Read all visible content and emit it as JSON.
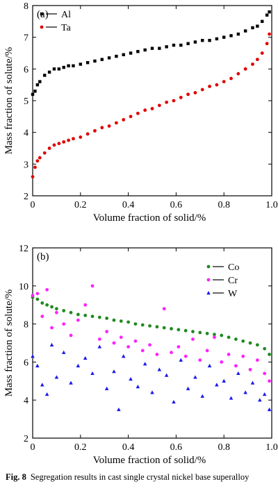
{
  "chart_data": [
    {
      "type": "scatter",
      "panel_label": "(a)",
      "xlabel": "Volume fraction of solid/%",
      "ylabel": "Mass fraction of solute/%",
      "xlim": [
        0,
        1.0
      ],
      "ylim": [
        2,
        8
      ],
      "xticks": [
        "0",
        "0.2",
        "0.4",
        "0.6",
        "0.8",
        "1.0"
      ],
      "yticks": [
        "2",
        "3",
        "4",
        "5",
        "6",
        "7",
        "8"
      ],
      "legend_position": "top-left",
      "series": [
        {
          "name": "Al",
          "color": "#000000",
          "marker": "square",
          "x": [
            0.0,
            0.01,
            0.02,
            0.03,
            0.05,
            0.07,
            0.09,
            0.11,
            0.13,
            0.15,
            0.17,
            0.2,
            0.23,
            0.26,
            0.29,
            0.32,
            0.35,
            0.38,
            0.41,
            0.44,
            0.47,
            0.5,
            0.53,
            0.56,
            0.59,
            0.62,
            0.65,
            0.68,
            0.71,
            0.74,
            0.77,
            0.8,
            0.83,
            0.86,
            0.89,
            0.92,
            0.94,
            0.96,
            0.98,
            0.99
          ],
          "y": [
            5.2,
            5.3,
            5.5,
            5.6,
            5.8,
            5.9,
            6.0,
            6.0,
            6.05,
            6.1,
            6.1,
            6.15,
            6.2,
            6.25,
            6.3,
            6.35,
            6.4,
            6.45,
            6.5,
            6.55,
            6.6,
            6.65,
            6.65,
            6.7,
            6.75,
            6.75,
            6.8,
            6.85,
            6.9,
            6.9,
            6.95,
            7.0,
            7.05,
            7.1,
            7.2,
            7.3,
            7.35,
            7.5,
            7.7,
            7.8
          ]
        },
        {
          "name": "Ta",
          "color": "#e00000",
          "marker": "circle",
          "x": [
            0.0,
            0.01,
            0.02,
            0.03,
            0.05,
            0.07,
            0.09,
            0.11,
            0.13,
            0.15,
            0.17,
            0.2,
            0.23,
            0.26,
            0.29,
            0.32,
            0.35,
            0.38,
            0.41,
            0.44,
            0.47,
            0.5,
            0.53,
            0.56,
            0.59,
            0.62,
            0.65,
            0.68,
            0.71,
            0.74,
            0.77,
            0.8,
            0.83,
            0.86,
            0.89,
            0.92,
            0.94,
            0.96,
            0.98,
            0.99
          ],
          "y": [
            2.6,
            2.9,
            3.1,
            3.2,
            3.35,
            3.5,
            3.6,
            3.65,
            3.7,
            3.75,
            3.8,
            3.85,
            3.95,
            4.05,
            4.15,
            4.2,
            4.3,
            4.4,
            4.5,
            4.6,
            4.7,
            4.75,
            4.85,
            4.95,
            5.0,
            5.1,
            5.2,
            5.25,
            5.35,
            5.45,
            5.5,
            5.6,
            5.7,
            5.85,
            6.0,
            6.15,
            6.3,
            6.5,
            6.8,
            7.1
          ]
        }
      ]
    },
    {
      "type": "scatter",
      "panel_label": "(b)",
      "xlabel": "Volume fraction of solid/%",
      "ylabel": "Mass fraction of solute/%",
      "xlim": [
        0,
        1.0
      ],
      "ylim": [
        2,
        12
      ],
      "xticks": [
        "0",
        "0.2",
        "0.4",
        "0.6",
        "0.8",
        "1.0"
      ],
      "yticks": [
        "2",
        "4",
        "6",
        "8",
        "10",
        "12"
      ],
      "legend_position": "top-right",
      "series": [
        {
          "name": "Co",
          "color": "#1f8a1f",
          "marker": "circle",
          "x": [
            0.0,
            0.02,
            0.04,
            0.06,
            0.08,
            0.1,
            0.13,
            0.16,
            0.19,
            0.22,
            0.25,
            0.28,
            0.31,
            0.34,
            0.37,
            0.4,
            0.43,
            0.46,
            0.49,
            0.52,
            0.55,
            0.58,
            0.61,
            0.64,
            0.67,
            0.7,
            0.73,
            0.76,
            0.79,
            0.82,
            0.85,
            0.88,
            0.91,
            0.94,
            0.97,
            0.99
          ],
          "y": [
            9.4,
            9.3,
            9.1,
            9.0,
            8.9,
            8.8,
            8.7,
            8.6,
            8.5,
            8.45,
            8.4,
            8.35,
            8.3,
            8.2,
            8.15,
            8.1,
            8.0,
            7.95,
            7.9,
            7.85,
            7.8,
            7.75,
            7.7,
            7.65,
            7.6,
            7.55,
            7.5,
            7.45,
            7.4,
            7.3,
            7.2,
            7.1,
            7.0,
            6.9,
            6.7,
            6.4
          ]
        },
        {
          "name": "Cr",
          "color": "#ff22ff",
          "marker": "circle",
          "x": [
            0.0,
            0.02,
            0.04,
            0.06,
            0.08,
            0.1,
            0.13,
            0.16,
            0.19,
            0.22,
            0.25,
            0.28,
            0.31,
            0.34,
            0.37,
            0.4,
            0.43,
            0.46,
            0.49,
            0.52,
            0.55,
            0.58,
            0.61,
            0.64,
            0.67,
            0.7,
            0.73,
            0.76,
            0.79,
            0.82,
            0.85,
            0.88,
            0.91,
            0.94,
            0.97,
            0.99
          ],
          "y": [
            9.5,
            9.6,
            8.4,
            9.8,
            7.8,
            8.6,
            8.0,
            7.4,
            8.2,
            9.0,
            10.0,
            7.2,
            7.6,
            7.0,
            7.3,
            6.8,
            7.1,
            6.6,
            6.9,
            6.4,
            8.8,
            6.5,
            6.8,
            6.3,
            7.2,
            6.1,
            6.6,
            7.3,
            6.0,
            6.4,
            5.8,
            6.3,
            5.6,
            6.1,
            5.4,
            5.0
          ]
        },
        {
          "name": "W",
          "color": "#1a1aee",
          "marker": "triangle",
          "x": [
            0.0,
            0.02,
            0.04,
            0.06,
            0.08,
            0.1,
            0.13,
            0.16,
            0.19,
            0.22,
            0.25,
            0.28,
            0.31,
            0.34,
            0.36,
            0.38,
            0.41,
            0.44,
            0.47,
            0.5,
            0.53,
            0.56,
            0.59,
            0.62,
            0.65,
            0.68,
            0.71,
            0.74,
            0.77,
            0.8,
            0.83,
            0.86,
            0.89,
            0.92,
            0.95,
            0.97,
            0.99
          ],
          "y": [
            6.3,
            5.8,
            4.8,
            4.3,
            6.9,
            5.2,
            6.5,
            4.9,
            5.8,
            6.2,
            5.4,
            6.8,
            4.6,
            5.5,
            3.5,
            6.3,
            5.1,
            4.7,
            5.9,
            4.4,
            5.6,
            5.3,
            3.9,
            6.1,
            4.6,
            5.2,
            4.2,
            5.8,
            4.8,
            5.0,
            4.1,
            5.4,
            4.4,
            4.9,
            4.0,
            4.3,
            3.5
          ]
        }
      ]
    }
  ],
  "caption": {
    "label": "Fig. 8",
    "text": "Segregation results in cast single crystal nickel base superalloy"
  }
}
